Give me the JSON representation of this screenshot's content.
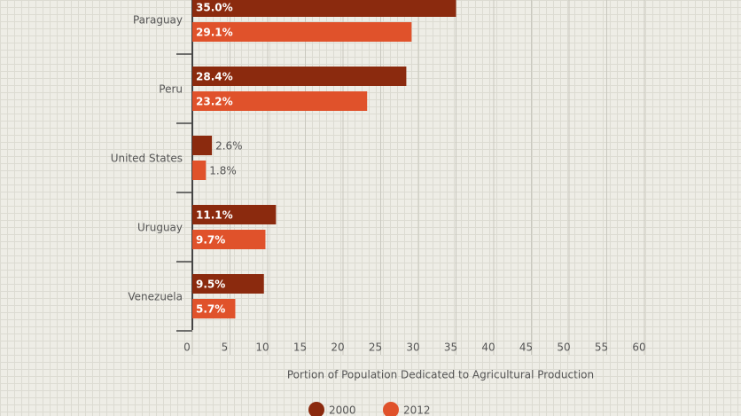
{
  "chart_data": {
    "type": "hbar",
    "categories": [
      "Paraguay",
      "Peru",
      "United States",
      "Uruguay",
      "Venezuela"
    ],
    "series": [
      {
        "name": "2000",
        "color": "#8b2a0e",
        "values": [
          35.0,
          28.4,
          2.6,
          11.1,
          9.5
        ],
        "value_labels": [
          "35.0%",
          "28.4%",
          "2.6%",
          "11.1%",
          "9.5%"
        ]
      },
      {
        "name": "2012",
        "color": "#e0522b",
        "values": [
          29.1,
          23.2,
          1.8,
          9.7,
          5.7
        ],
        "value_labels": [
          "29.1%",
          "23.2%",
          "1.8%",
          "9.7%",
          "5.7%"
        ]
      }
    ],
    "xlim": [
      0,
      60
    ],
    "xticks": [
      0,
      5,
      10,
      15,
      20,
      25,
      30,
      35,
      40,
      45,
      50,
      55,
      60
    ],
    "xlabel": "Portion of Population Dedicated to Agricultural Production",
    "grid": true
  }
}
